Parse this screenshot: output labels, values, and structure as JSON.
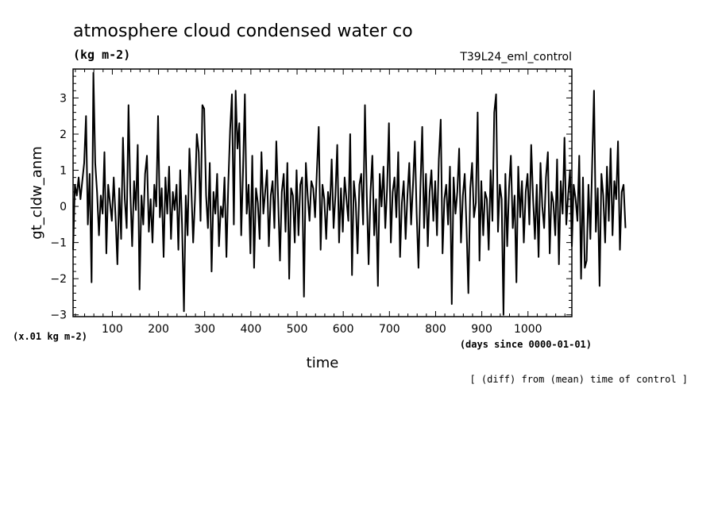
{
  "chart_data": {
    "type": "line",
    "title": "atmosphere cloud condensed water co",
    "title_units": "(kg m-2)",
    "run_label": "T39L24_eml_control",
    "ylabel": "gt_cldw_anm",
    "yunits": "(x.01 kg m-2)",
    "xlabel": "time",
    "xunits": "(days since 0000-01-01)",
    "footnote": "[ (diff) from (mean) time of control ]",
    "xlim": [
      15,
      1095
    ],
    "ylim": [
      -3.05,
      3.8
    ],
    "x_ticks": [
      100,
      200,
      300,
      400,
      500,
      600,
      700,
      800,
      900,
      1000
    ],
    "y_ticks": [
      -3,
      -2,
      -1,
      0,
      1,
      2,
      3
    ],
    "line_color": "#000000",
    "series": [
      {
        "x_start": 15,
        "x_step": 4,
        "values": [
          -1.2,
          0.6,
          0.3,
          0.8,
          0.2,
          0.7,
          1.2,
          2.5,
          -0.5,
          0.9,
          -2.1,
          3.7,
          1.2,
          0.4,
          -0.8,
          0.3,
          -0.2,
          1.5,
          -1.3,
          0.6,
          0.1,
          -0.4,
          0.8,
          -0.3,
          -1.6,
          0.5,
          -0.9,
          1.9,
          0.2,
          -0.6,
          2.8,
          0.4,
          -1.1,
          0.7,
          -0.1,
          1.7,
          -2.3,
          0.3,
          -0.5,
          0.9,
          1.4,
          -0.7,
          0.2,
          -1.0,
          0.6,
          0.0,
          2.5,
          -0.3,
          0.5,
          -1.4,
          0.8,
          -0.2,
          1.1,
          -0.9,
          0.4,
          -0.1,
          0.6,
          -1.2,
          1.0,
          -0.5,
          -2.9,
          0.3,
          -0.8,
          1.6,
          0.5,
          -1.0,
          0.2,
          2.0,
          1.5,
          -0.4,
          2.8,
          2.7,
          0.3,
          -0.6,
          1.2,
          -1.8,
          0.4,
          -0.2,
          0.9,
          -1.1,
          0.0,
          -0.3,
          0.8,
          -1.4,
          0.6,
          2.1,
          3.1,
          -0.5,
          3.2,
          1.6,
          2.3,
          -0.8,
          1.0,
          3.1,
          -0.2,
          0.6,
          -1.3,
          1.4,
          -1.7,
          0.5,
          0.1,
          -0.9,
          1.5,
          -0.2,
          0.4,
          1.0,
          -1.1,
          0.3,
          0.7,
          -0.6,
          1.8,
          0.2,
          -1.5,
          0.4,
          0.9,
          -0.7,
          1.2,
          -2.0,
          0.5,
          0.3,
          -1.0,
          1.0,
          -0.8,
          0.6,
          0.8,
          -2.5,
          1.2,
          0.3,
          -0.4,
          0.7,
          0.5,
          -0.3,
          1.0,
          2.2,
          -1.2,
          0.6,
          0.2,
          -0.9,
          0.4,
          -0.1,
          1.3,
          -0.6,
          0.3,
          1.7,
          -1.0,
          0.5,
          -0.7,
          0.8,
          0.2,
          -0.4,
          2.0,
          -1.9,
          0.7,
          0.1,
          -1.3,
          0.6,
          0.9,
          -0.5,
          2.8,
          0.3,
          -1.6,
          0.4,
          1.4,
          -0.8,
          0.2,
          -2.2,
          0.9,
          0.0,
          1.1,
          -0.6,
          0.5,
          2.3,
          -1.0,
          0.4,
          0.8,
          -0.3,
          1.5,
          -1.4,
          0.1,
          0.7,
          -0.9,
          0.3,
          1.2,
          -0.5,
          0.6,
          1.8,
          -0.2,
          -1.7,
          0.5,
          2.2,
          -0.6,
          0.9,
          -1.1,
          0.4,
          1.0,
          -0.4,
          0.7,
          -0.8,
          1.3,
          2.4,
          -1.3,
          0.2,
          0.6,
          -0.5,
          1.1,
          -2.7,
          0.8,
          -0.2,
          0.4,
          1.6,
          -1.0,
          0.3,
          0.9,
          -0.6,
          -2.4,
          0.5,
          1.2,
          -0.3,
          0.1,
          2.6,
          -1.5,
          0.7,
          -0.8,
          0.4,
          0.2,
          -1.2,
          1.0,
          -0.4,
          2.6,
          3.1,
          -0.7,
          0.6,
          0.2,
          -3.0,
          0.9,
          -1.1,
          0.5,
          1.4,
          -0.6,
          0.3,
          -2.1,
          1.1,
          -0.3,
          0.7,
          -1.0,
          0.4,
          0.9,
          -0.5,
          1.7,
          0.2,
          -0.9,
          0.6,
          -1.4,
          1.2,
          0.0,
          -0.6,
          0.8,
          1.5,
          -1.3,
          0.4,
          0.1,
          -0.8,
          1.3,
          -1.6,
          0.7,
          -0.2,
          1.9,
          -0.5,
          0.3,
          1.0,
          -1.1,
          0.6,
          0.2,
          -0.4,
          1.4,
          -2.0,
          0.8,
          -1.7,
          -1.5,
          0.6,
          -0.9,
          1.2,
          3.2,
          -0.7,
          0.5,
          -2.2,
          0.9,
          0.3,
          -1.0,
          1.1,
          -0.4,
          1.6,
          -0.8,
          0.7,
          0.2,
          1.8,
          -1.2,
          0.4,
          0.6,
          -0.6
        ]
      }
    ]
  }
}
